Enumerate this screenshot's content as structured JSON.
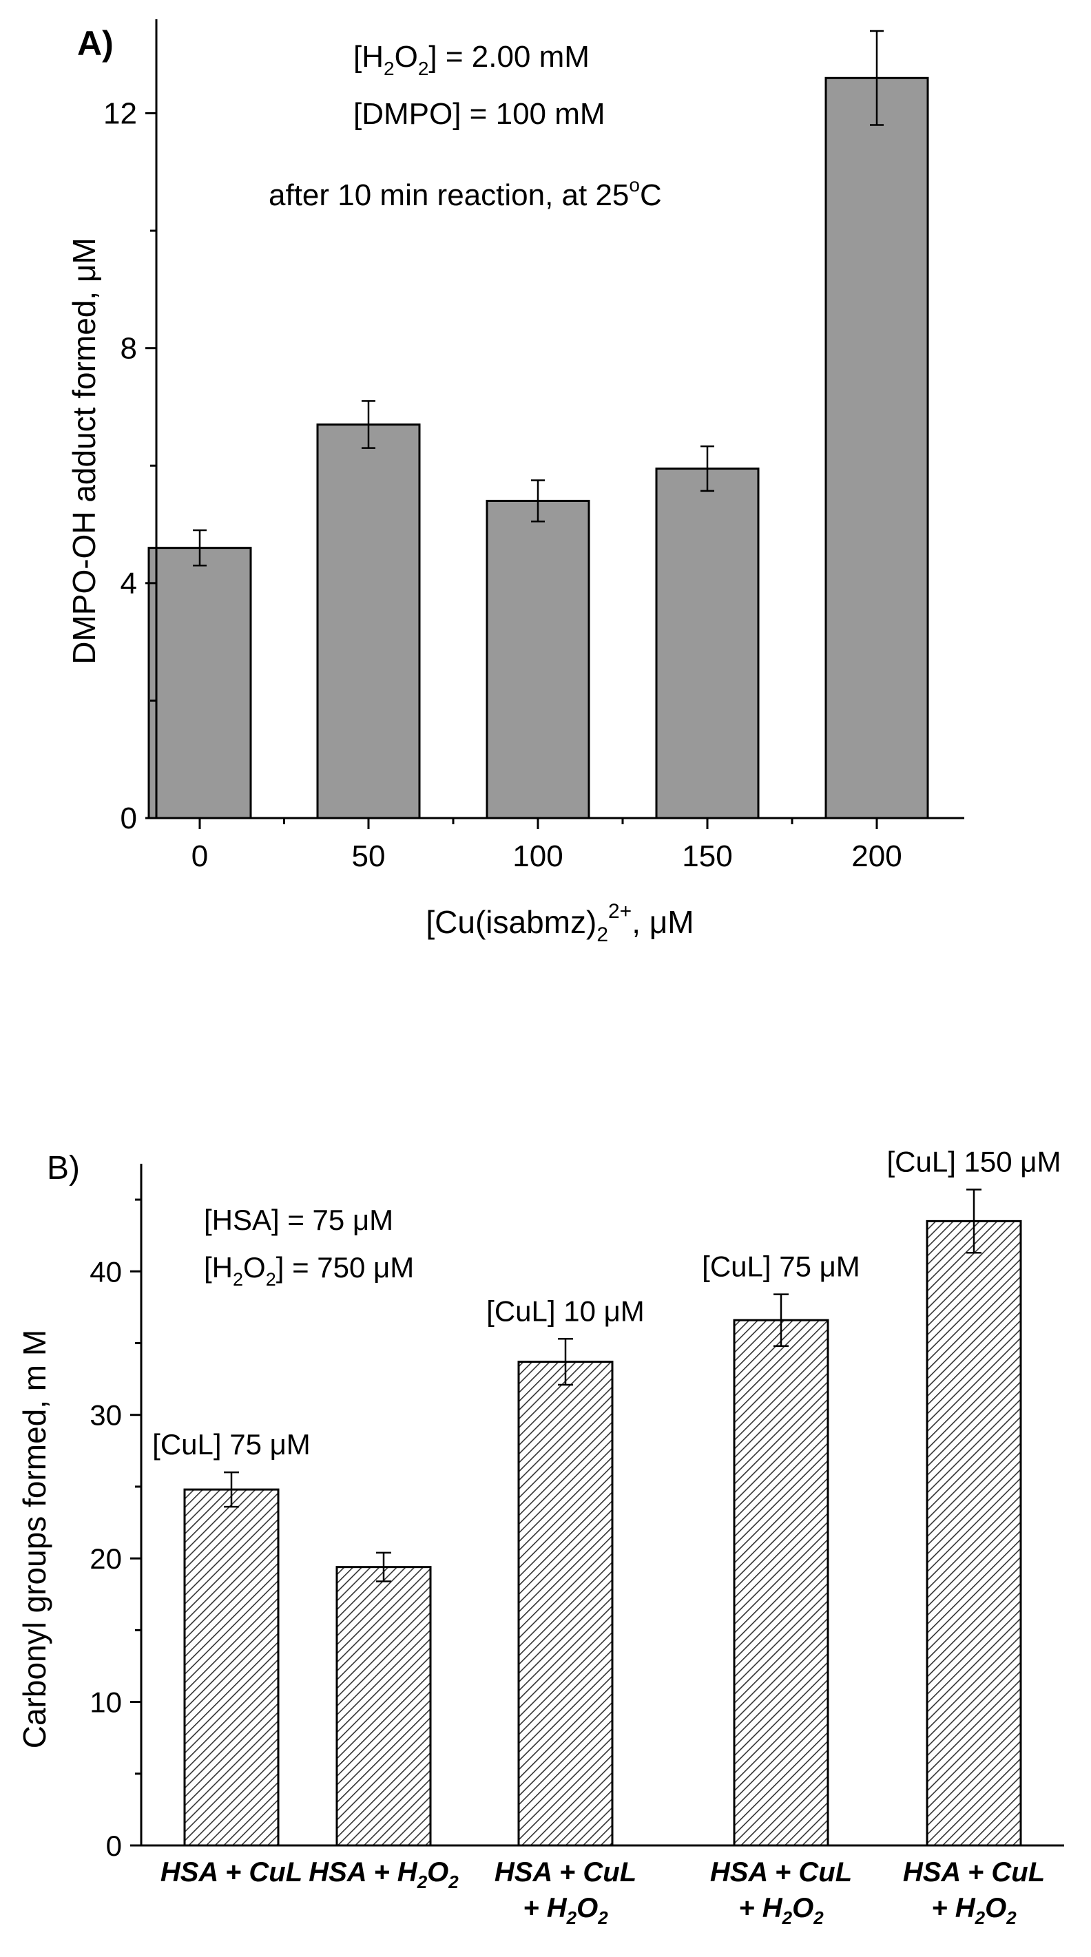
{
  "chart_data": [
    {
      "type": "bar",
      "panel_label": "A)",
      "title": "",
      "categories": [
        "0",
        "50",
        "100",
        "150",
        "200"
      ],
      "values": [
        4.6,
        6.7,
        5.4,
        5.95,
        12.6
      ],
      "errors": [
        0.3,
        0.4,
        0.35,
        0.38,
        0.8
      ],
      "ylim": [
        0,
        13.6
      ],
      "yticks": [
        "0",
        "4",
        "8",
        "12"
      ],
      "ytick_values": [
        0,
        4,
        8,
        12
      ],
      "ylabel": "DMPO-OH adduct formed, μM",
      "xlabel": {
        "main": "[Cu(isabmz)",
        "sub": "2",
        "sup": "2+",
        "unit": ", μM"
      },
      "annotations": {
        "h2o2": {
          "pre": "[H",
          "sub1": "2",
          "mid": "O",
          "sub2": "2",
          "post": "] = 2.00 mM"
        },
        "dmpo": "[DMPO] = 100 mM",
        "conditions_pre": "after 10 min reaction, at 25",
        "conditions_deg": "o",
        "conditions_post": "C"
      },
      "color": "#999999"
    },
    {
      "type": "bar",
      "panel_label": "B)",
      "title": "",
      "categories": [
        {
          "line1_pre": "HSA + CuL",
          "line1_sub": "",
          "line2_pre": "",
          "line2_sub": "",
          "line2_post": ""
        },
        {
          "line1_pre": "HSA + H",
          "line1_sub": "2",
          "line1_post": "O",
          "line1_sub2": "2",
          "line2_pre": "",
          "line2_sub": "",
          "line2_post": ""
        },
        {
          "line1_pre": "HSA + CuL",
          "line2_pre": "+ H",
          "line2_sub": "2",
          "line2_post": "O",
          "line2_sub2": "2"
        },
        {
          "line1_pre": "HSA + CuL",
          "line2_pre": "+ H",
          "line2_sub": "2",
          "line2_post": "O",
          "line2_sub2": "2"
        },
        {
          "line1_pre": "HSA + CuL",
          "line2_pre": "+ H",
          "line2_sub": "2",
          "line2_post": "O",
          "line2_sub2": "2"
        }
      ],
      "values": [
        24.8,
        19.4,
        33.7,
        36.6,
        43.5
      ],
      "errors": [
        1.2,
        1.0,
        1.6,
        1.8,
        2.2
      ],
      "bar_labels": [
        "[CuL] 75 μM",
        "",
        "[CuL] 10 μM",
        "[CuL] 75 μM",
        "[CuL] 150 μM"
      ],
      "ylim": [
        0,
        47.5
      ],
      "yticks": [
        "0",
        "10",
        "20",
        "30",
        "40"
      ],
      "ytick_values": [
        0,
        10,
        20,
        30,
        40
      ],
      "ylabel": "Carbonyl groups formed, m M",
      "xlabel": "",
      "annotations": {
        "hsa": "[HSA] = 75 μM",
        "h2o2": {
          "pre": "[H",
          "sub1": "2",
          "mid": "O",
          "sub2": "2",
          "post": "] = 750 μM"
        }
      },
      "fill": "hatched"
    }
  ]
}
